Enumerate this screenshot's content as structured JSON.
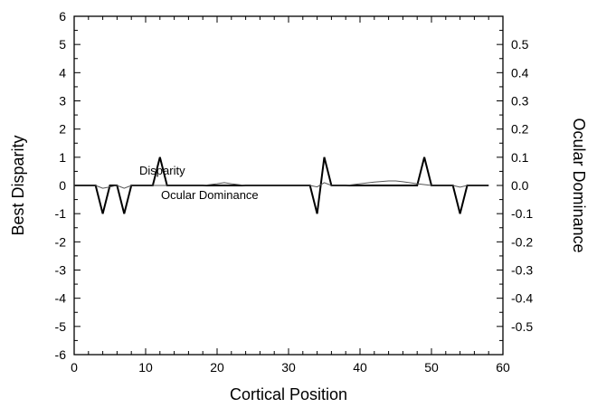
{
  "chart_data": {
    "type": "line",
    "xlabel": "Cortical Position",
    "ylabel": "Best Disparity",
    "y2label": "Ocular Dominance",
    "xlim": [
      0,
      60
    ],
    "ylim": [
      -6,
      6
    ],
    "y2lim": [
      -0.6,
      0.6
    ],
    "x_ticks": [
      0,
      10,
      20,
      30,
      40,
      50,
      60
    ],
    "y_ticks": [
      -6,
      -5,
      -4,
      -3,
      -2,
      -1,
      0,
      1,
      2,
      3,
      4,
      5,
      6
    ],
    "y2_ticks": [
      "0.5",
      "0.4",
      "0.3",
      "0.2",
      "0.1",
      "0.0",
      "-0.1",
      "-0.2",
      "-0.3",
      "-0.4",
      "-0.5"
    ],
    "grid": false,
    "annotations": [
      {
        "text": "Disparity",
        "series": "disparity"
      },
      {
        "text": "Ocular Dominance",
        "series": "ocular_dominance"
      }
    ],
    "series": [
      {
        "id": "disparity",
        "axis": "left",
        "color": "#000000",
        "x": [
          0,
          3,
          4,
          5,
          6,
          7,
          8,
          11,
          12,
          13,
          33,
          34,
          35,
          36,
          48,
          49,
          50,
          53,
          54,
          55,
          58
        ],
        "y": [
          0,
          0,
          -1,
          0,
          0,
          -1,
          0,
          0,
          1,
          0,
          0,
          -1,
          1,
          0,
          0,
          1,
          0,
          0,
          -1,
          0,
          0
        ]
      },
      {
        "id": "ocular_dominance",
        "axis": "right",
        "color": "#555555",
        "x": [
          0,
          3,
          4,
          5,
          6,
          7,
          8,
          10,
          15,
          18,
          20,
          21,
          22,
          24,
          30,
          33,
          34,
          35,
          36,
          38,
          40,
          42,
          44,
          45,
          46,
          48,
          50,
          53,
          54,
          55,
          58
        ],
        "y": [
          0,
          0,
          -0.01,
          -0.005,
          0,
          -0.01,
          0,
          0,
          0,
          0,
          0.006,
          0.01,
          0.006,
          0,
          0,
          0,
          -0.005,
          0.01,
          0,
          0,
          0.006,
          0.012,
          0.016,
          0.016,
          0.013,
          0.006,
          0,
          0,
          -0.006,
          0,
          0
        ]
      }
    ]
  }
}
